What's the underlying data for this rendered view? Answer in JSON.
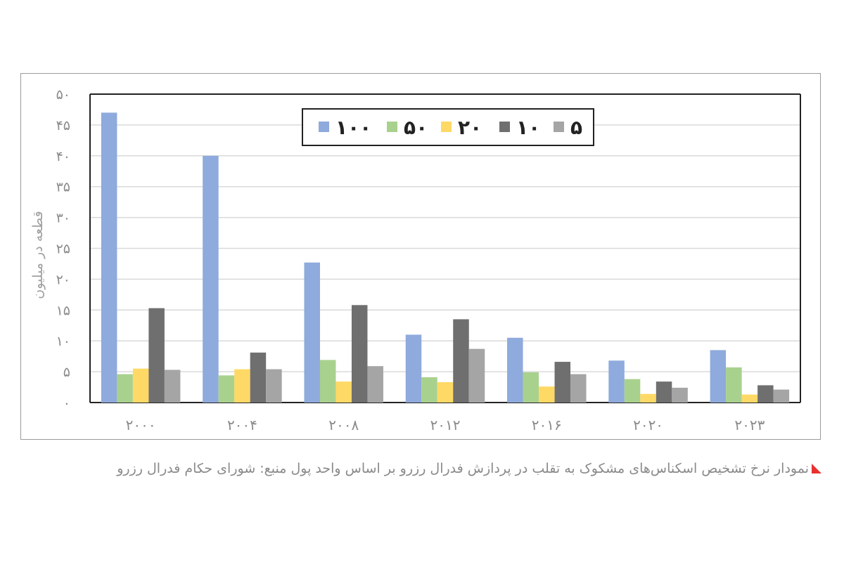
{
  "caption": {
    "text": "نمودار نرخ تشخیص اسکناس‌های مشکوک به تقلب در پردازش فدرال رزرو بر اساس واحد پول منبع: شورای حکام فدرال رزرو",
    "marker_color": "#e8312f"
  },
  "chart_data": {
    "type": "bar",
    "title": "",
    "xlabel": "",
    "ylabel": "قطعه در میلیون",
    "ylim": [
      0,
      50
    ],
    "yticks": [
      0,
      5,
      10,
      15,
      20,
      25,
      30,
      35,
      40,
      45,
      50
    ],
    "ytick_labels": [
      "۰",
      "۵",
      "۱۰",
      "۱۵",
      "۲۰",
      "۲۵",
      "۳۰",
      "۳۵",
      "۴۰",
      "۴۵",
      "۵۰"
    ],
    "categories": [
      "۲۰۰۰",
      "۲۰۰۴",
      "۲۰۰۸",
      "۲۰۱۲",
      "۲۰۱۶",
      "۲۰۲۰",
      "۲۰۲۳"
    ],
    "grid": true,
    "legend_position": "top-center",
    "series": [
      {
        "name": "۱۰۰",
        "color": "#8faadc",
        "values": [
          47,
          40,
          22.7,
          11,
          10.5,
          6.8,
          8.5
        ]
      },
      {
        "name": "۵۰",
        "color": "#a9d18e",
        "values": [
          4.6,
          4.4,
          6.9,
          4.1,
          4.9,
          3.8,
          5.7
        ]
      },
      {
        "name": "۲۰",
        "color": "#ffd966",
        "values": [
          5.5,
          5.4,
          3.4,
          3.3,
          2.6,
          1.4,
          1.3
        ]
      },
      {
        "name": "۱۰",
        "color": "#6f6f6f",
        "values": [
          15.3,
          8.1,
          15.8,
          13.5,
          6.6,
          3.4,
          2.8
        ]
      },
      {
        "name": "۵",
        "color": "#a5a5a5",
        "values": [
          5.3,
          5.4,
          5.9,
          8.7,
          4.6,
          2.4,
          2.1
        ]
      }
    ]
  }
}
